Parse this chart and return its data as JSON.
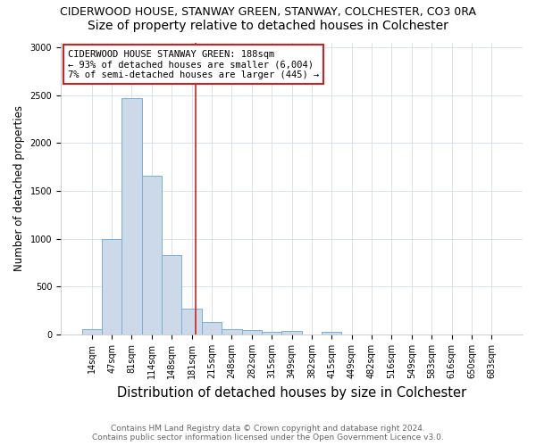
{
  "title": "CIDERWOOD HOUSE, STANWAY GREEN, STANWAY, COLCHESTER, CO3 0RA",
  "subtitle": "Size of property relative to detached houses in Colchester",
  "xlabel": "Distribution of detached houses by size in Colchester",
  "ylabel": "Number of detached properties",
  "bin_labels": [
    "14sqm",
    "47sqm",
    "81sqm",
    "114sqm",
    "148sqm",
    "181sqm",
    "215sqm",
    "248sqm",
    "282sqm",
    "315sqm",
    "349sqm",
    "382sqm",
    "415sqm",
    "449sqm",
    "482sqm",
    "516sqm",
    "549sqm",
    "583sqm",
    "616sqm",
    "650sqm",
    "683sqm"
  ],
  "bar_values": [
    55,
    1000,
    2470,
    1660,
    830,
    270,
    130,
    55,
    50,
    30,
    40,
    0,
    30,
    0,
    0,
    0,
    0,
    0,
    0,
    0,
    0
  ],
  "bar_color": "#ccd9e8",
  "bar_edge_color": "#7aafd4",
  "vline_index": 5.21,
  "vline_color": "#cc2222",
  "annotation_line1": "CIDERWOOD HOUSE STANWAY GREEN: 188sqm",
  "annotation_line2": "← 93% of detached houses are smaller (6,004)",
  "annotation_line3": "7% of semi-detached houses are larger (445) →",
  "annotation_box_facecolor": "#ffffff",
  "annotation_box_edgecolor": "#cc2222",
  "ylim": [
    0,
    3050
  ],
  "yticks": [
    0,
    500,
    1000,
    1500,
    2000,
    2500,
    3000
  ],
  "background_color": "#ffffff",
  "grid_color": "#d5dde8",
  "footer1": "Contains HM Land Registry data © Crown copyright and database right 2024.",
  "footer2": "Contains public sector information licensed under the Open Government Licence v3.0.",
  "title_fontsize": 9,
  "subtitle_fontsize": 10,
  "xlabel_fontsize": 10.5,
  "ylabel_fontsize": 8.5,
  "tick_fontsize": 7,
  "annot_fontsize": 7.5,
  "footer_fontsize": 6.5
}
